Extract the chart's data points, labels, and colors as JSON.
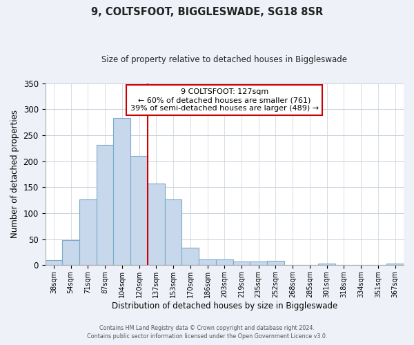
{
  "title": "9, COLTSFOOT, BIGGLESWADE, SG18 8SR",
  "subtitle": "Size of property relative to detached houses in Biggleswade",
  "xlabel": "Distribution of detached houses by size in Biggleswade",
  "ylabel": "Number of detached properties",
  "bar_labels": [
    "38sqm",
    "54sqm",
    "71sqm",
    "87sqm",
    "104sqm",
    "120sqm",
    "137sqm",
    "153sqm",
    "170sqm",
    "186sqm",
    "203sqm",
    "219sqm",
    "235sqm",
    "252sqm",
    "268sqm",
    "285sqm",
    "301sqm",
    "318sqm",
    "334sqm",
    "351sqm",
    "367sqm"
  ],
  "bar_values": [
    10,
    48,
    127,
    231,
    283,
    210,
    157,
    126,
    34,
    11,
    11,
    7,
    7,
    8,
    0,
    0,
    3,
    0,
    0,
    0,
    3
  ],
  "bar_color": "#c8d8ec",
  "bar_edge_color": "#7aaac8",
  "ylim": [
    0,
    350
  ],
  "yticks": [
    0,
    50,
    100,
    150,
    200,
    250,
    300,
    350
  ],
  "property_line_x": 5.5,
  "property_line_color": "#cc0000",
  "annotation_title": "9 COLTSFOOT: 127sqm",
  "annotation_line1": "← 60% of detached houses are smaller (761)",
  "annotation_line2": "39% of semi-detached houses are larger (489) →",
  "annotation_box_color": "#cc0000",
  "footer1": "Contains HM Land Registry data © Crown copyright and database right 2024.",
  "footer2": "Contains public sector information licensed under the Open Government Licence v3.0.",
  "background_color": "#eef2f8",
  "plot_bg_color": "#ffffff",
  "grid_color": "#c8d0dc"
}
